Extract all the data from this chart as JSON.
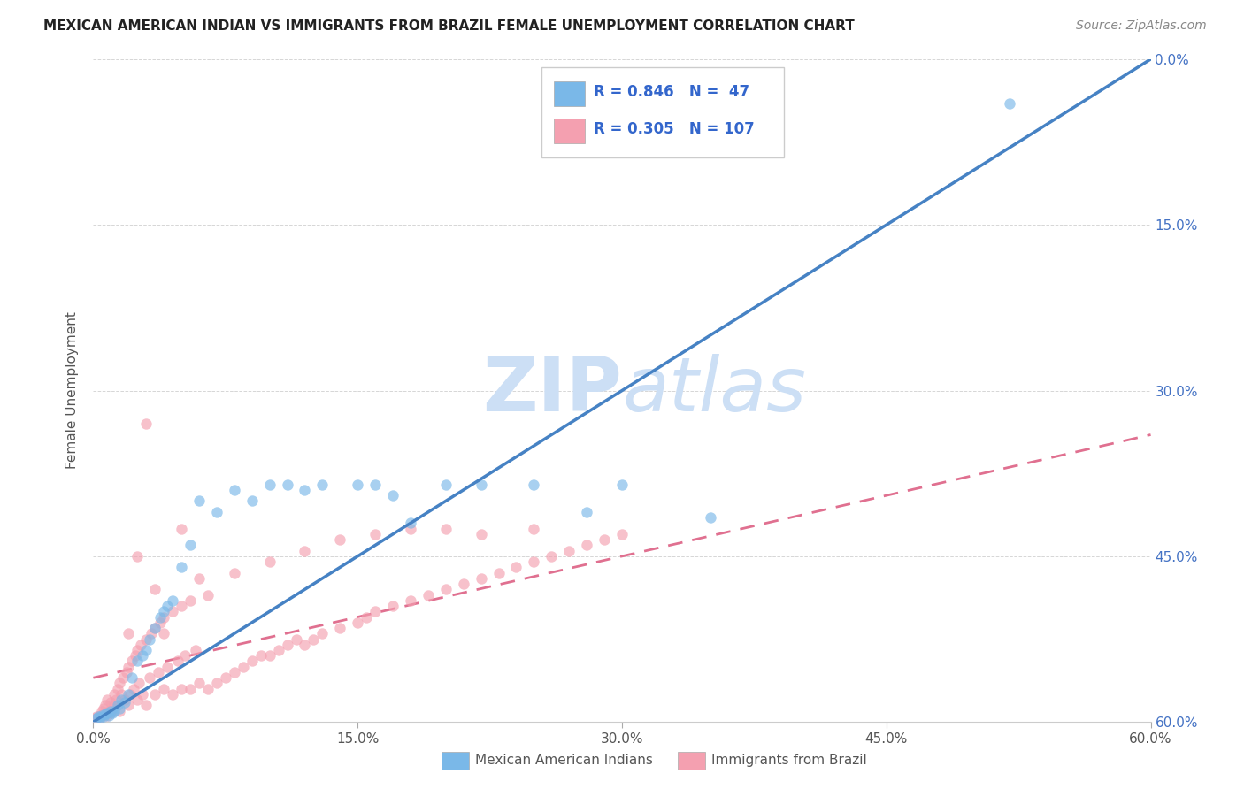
{
  "title": "MEXICAN AMERICAN INDIAN VS IMMIGRANTS FROM BRAZIL FEMALE UNEMPLOYMENT CORRELATION CHART",
  "source": "Source: ZipAtlas.com",
  "ylabel": "Female Unemployment",
  "xlabel": "",
  "xlim": [
    0,
    0.6
  ],
  "ylim": [
    0,
    0.6
  ],
  "xtick_labels": [
    "0.0%",
    "15.0%",
    "30.0%",
    "45.0%",
    "60.0%"
  ],
  "xtick_vals": [
    0.0,
    0.15,
    0.3,
    0.45,
    0.6
  ],
  "ytick_labels_right": [
    "60.0%",
    "45.0%",
    "30.0%",
    "15.0%",
    "0.0%"
  ],
  "ytick_vals": [
    0.0,
    0.15,
    0.3,
    0.45,
    0.6
  ],
  "series1_color": "#7ab8e8",
  "series2_color": "#f4a0b0",
  "series1_line_color": "#4682c4",
  "series2_line_color": "#e07090",
  "series1_R": "0.846",
  "series1_N": "47",
  "series2_R": "0.305",
  "series2_N": "107",
  "series1_label": "Mexican American Indians",
  "series2_label": "Immigrants from Brazil",
  "legend_color": "#3366cc",
  "watermark_zip": "ZIP",
  "watermark_atlas": "atlas",
  "watermark_color": "#ccdff5",
  "background_color": "#ffffff",
  "grid_color": "#cccccc",
  "title_color": "#222222",
  "right_axis_color": "#4472c4",
  "series1_x": [
    0.002,
    0.003,
    0.004,
    0.005,
    0.006,
    0.007,
    0.008,
    0.009,
    0.01,
    0.011,
    0.012,
    0.014,
    0.015,
    0.016,
    0.018,
    0.02,
    0.022,
    0.025,
    0.028,
    0.03,
    0.032,
    0.035,
    0.038,
    0.04,
    0.042,
    0.045,
    0.05,
    0.055,
    0.06,
    0.07,
    0.08,
    0.09,
    0.1,
    0.11,
    0.12,
    0.13,
    0.15,
    0.16,
    0.17,
    0.18,
    0.2,
    0.22,
    0.25,
    0.28,
    0.3,
    0.35,
    0.52
  ],
  "series1_y": [
    0.003,
    0.005,
    0.004,
    0.006,
    0.005,
    0.007,
    0.008,
    0.006,
    0.01,
    0.008,
    0.01,
    0.015,
    0.012,
    0.02,
    0.018,
    0.025,
    0.04,
    0.055,
    0.06,
    0.065,
    0.075,
    0.085,
    0.095,
    0.1,
    0.105,
    0.11,
    0.14,
    0.16,
    0.2,
    0.19,
    0.21,
    0.2,
    0.215,
    0.215,
    0.21,
    0.215,
    0.215,
    0.215,
    0.205,
    0.18,
    0.215,
    0.215,
    0.215,
    0.19,
    0.215,
    0.185,
    0.56
  ],
  "series2_x": [
    0.001,
    0.002,
    0.003,
    0.004,
    0.005,
    0.005,
    0.006,
    0.006,
    0.007,
    0.007,
    0.008,
    0.008,
    0.009,
    0.01,
    0.01,
    0.011,
    0.012,
    0.012,
    0.013,
    0.014,
    0.015,
    0.015,
    0.016,
    0.017,
    0.018,
    0.019,
    0.02,
    0.02,
    0.021,
    0.022,
    0.023,
    0.024,
    0.025,
    0.025,
    0.026,
    0.027,
    0.028,
    0.03,
    0.03,
    0.032,
    0.033,
    0.035,
    0.035,
    0.037,
    0.038,
    0.04,
    0.04,
    0.042,
    0.045,
    0.045,
    0.048,
    0.05,
    0.05,
    0.052,
    0.055,
    0.055,
    0.058,
    0.06,
    0.065,
    0.065,
    0.07,
    0.075,
    0.08,
    0.085,
    0.09,
    0.095,
    0.1,
    0.105,
    0.11,
    0.115,
    0.12,
    0.125,
    0.13,
    0.14,
    0.15,
    0.155,
    0.16,
    0.17,
    0.18,
    0.19,
    0.2,
    0.21,
    0.22,
    0.23,
    0.24,
    0.25,
    0.26,
    0.27,
    0.28,
    0.29,
    0.3,
    0.02,
    0.025,
    0.03,
    0.035,
    0.04,
    0.05,
    0.06,
    0.08,
    0.1,
    0.12,
    0.14,
    0.16,
    0.18,
    0.2,
    0.22,
    0.25
  ],
  "series2_y": [
    0.003,
    0.005,
    0.004,
    0.006,
    0.005,
    0.01,
    0.007,
    0.012,
    0.008,
    0.015,
    0.006,
    0.02,
    0.01,
    0.008,
    0.018,
    0.012,
    0.015,
    0.025,
    0.02,
    0.03,
    0.01,
    0.035,
    0.025,
    0.04,
    0.02,
    0.045,
    0.015,
    0.05,
    0.025,
    0.055,
    0.03,
    0.06,
    0.02,
    0.065,
    0.035,
    0.07,
    0.025,
    0.015,
    0.075,
    0.04,
    0.08,
    0.025,
    0.085,
    0.045,
    0.09,
    0.03,
    0.095,
    0.05,
    0.025,
    0.1,
    0.055,
    0.03,
    0.105,
    0.06,
    0.03,
    0.11,
    0.065,
    0.035,
    0.03,
    0.115,
    0.035,
    0.04,
    0.045,
    0.05,
    0.055,
    0.06,
    0.06,
    0.065,
    0.07,
    0.075,
    0.07,
    0.075,
    0.08,
    0.085,
    0.09,
    0.095,
    0.1,
    0.105,
    0.11,
    0.115,
    0.12,
    0.125,
    0.13,
    0.135,
    0.14,
    0.145,
    0.15,
    0.155,
    0.16,
    0.165,
    0.17,
    0.08,
    0.15,
    0.27,
    0.12,
    0.08,
    0.175,
    0.13,
    0.135,
    0.145,
    0.155,
    0.165,
    0.17,
    0.175,
    0.175,
    0.17,
    0.175
  ]
}
